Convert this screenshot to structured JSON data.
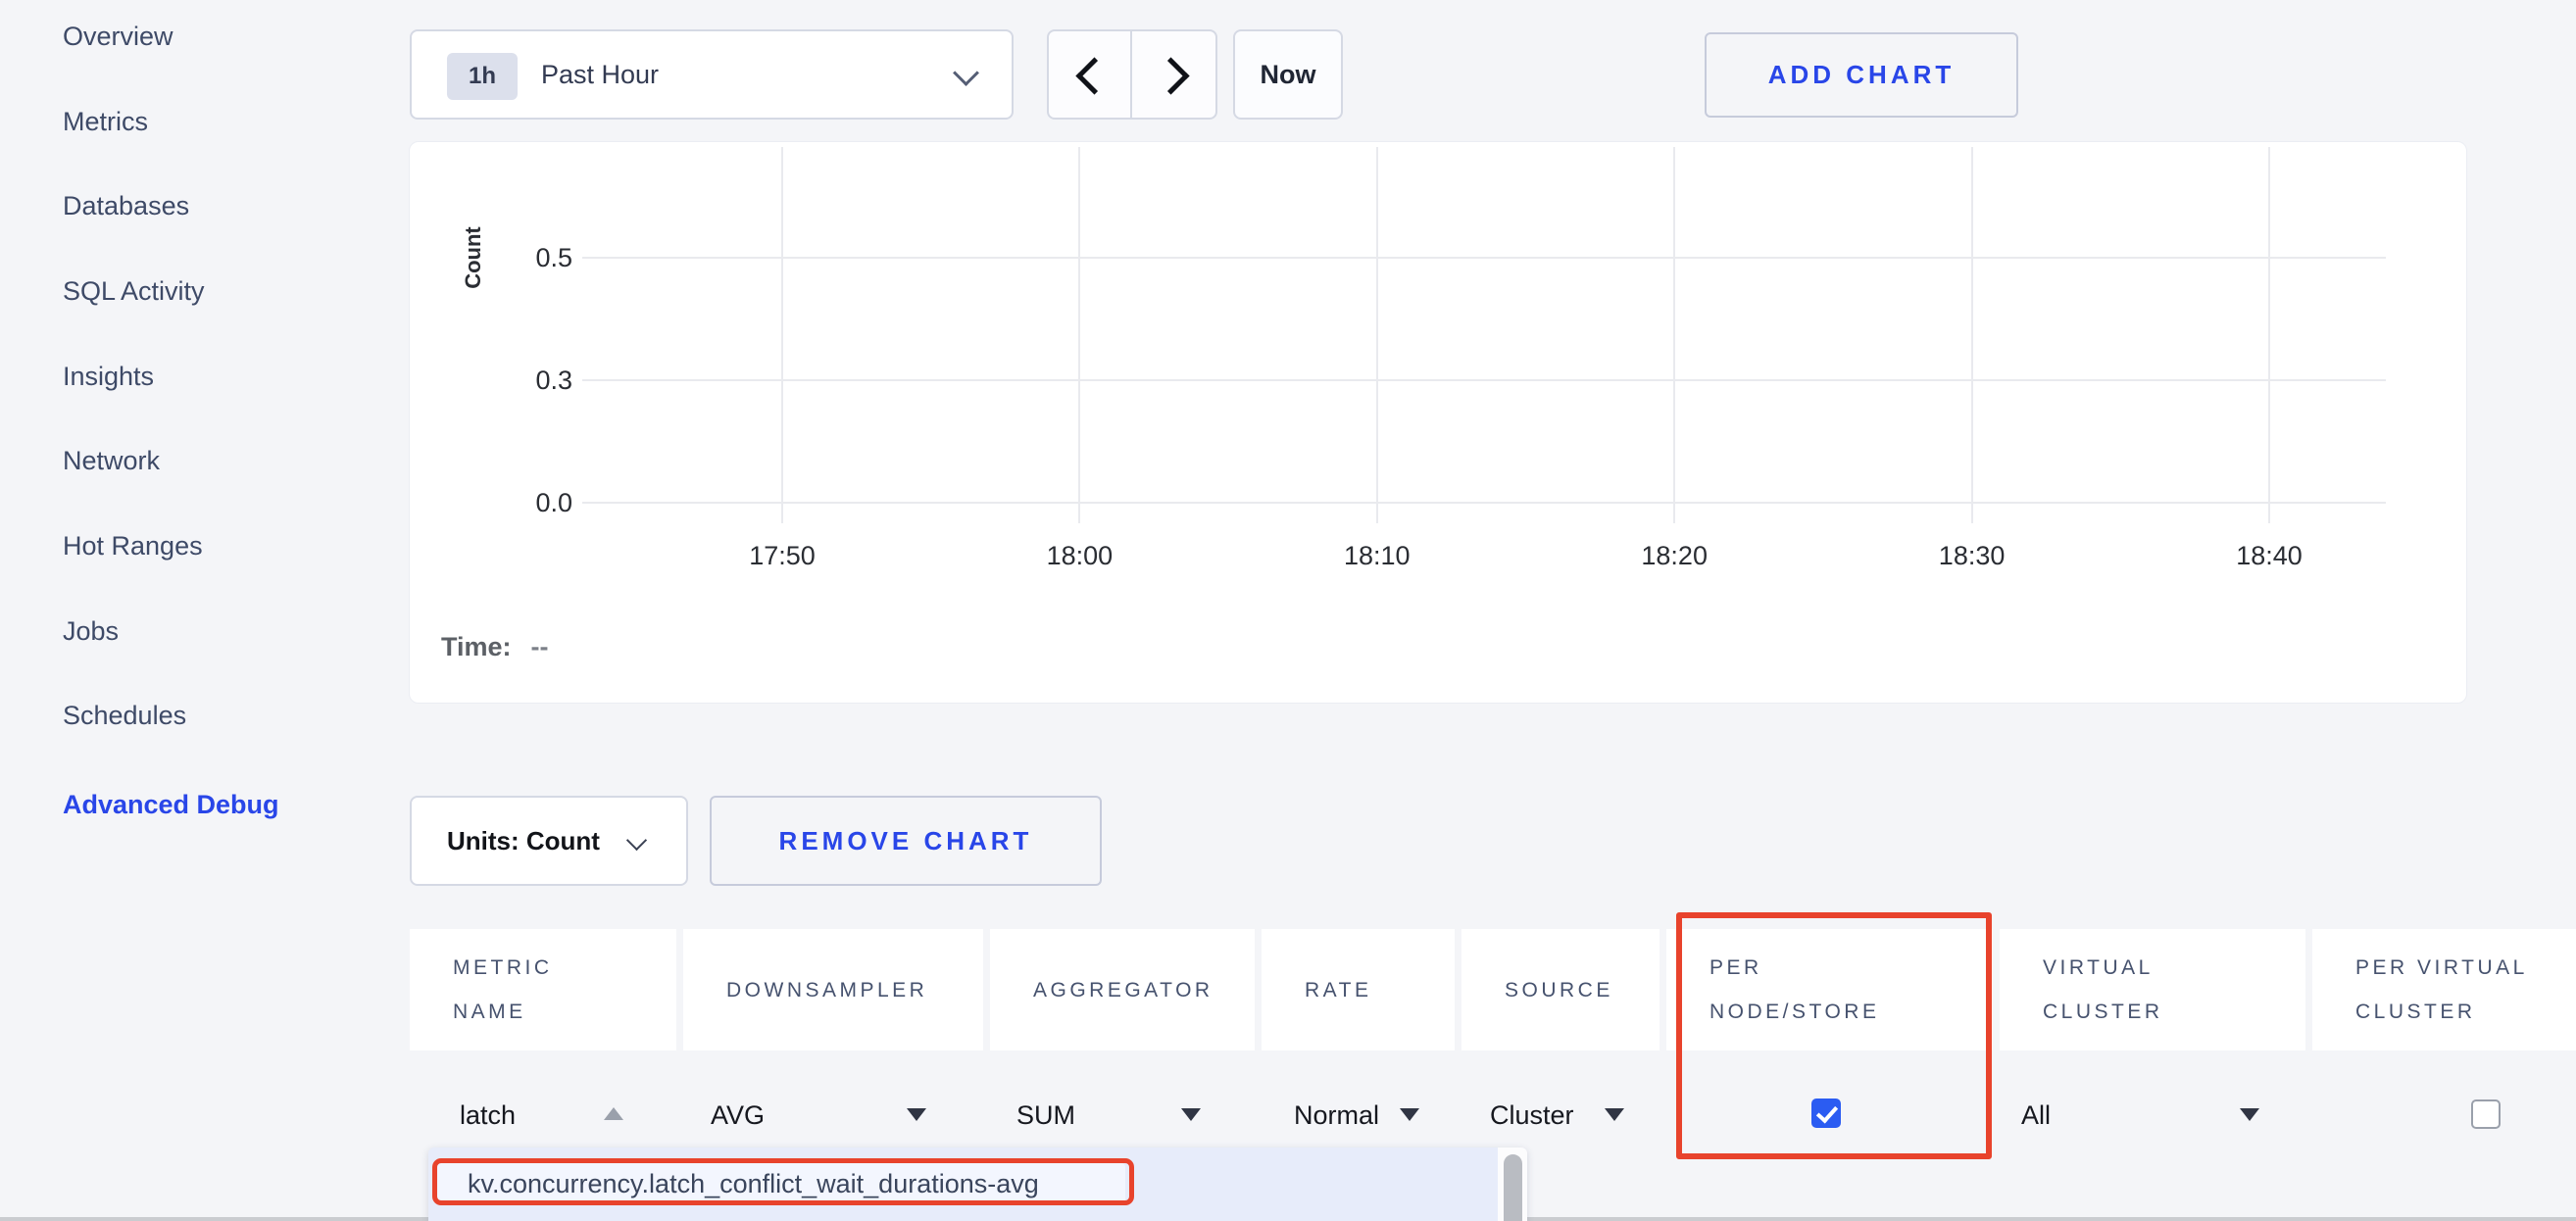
{
  "colors": {
    "page_bg": "#f4f5f8",
    "accent_blue": "#2946e8",
    "annotation_red": "#e8432c",
    "checkbox_blue": "#2b5cf2"
  },
  "icons": {
    "time_range": "chevron-down-icon",
    "prev": "chevron-left-icon",
    "next": "chevron-right-icon",
    "units": "chevron-down-icon",
    "metric_sort": "caret-up-icon",
    "selects": "caret-down-icon"
  },
  "sidebar": {
    "items": [
      {
        "label": "Overview"
      },
      {
        "label": "Metrics"
      },
      {
        "label": "Databases"
      },
      {
        "label": "SQL Activity"
      },
      {
        "label": "Insights"
      },
      {
        "label": "Network"
      },
      {
        "label": "Hot Ranges"
      },
      {
        "label": "Jobs"
      },
      {
        "label": "Schedules"
      },
      {
        "label": "Advanced Debug",
        "active": true
      }
    ]
  },
  "toolbar": {
    "time_range": {
      "badge": "1h",
      "label": "Past Hour"
    },
    "now_label": "Now",
    "add_chart_label": "ADD CHART"
  },
  "chart_data": {
    "type": "line",
    "title": "",
    "ylabel": "Count",
    "x_ticks": [
      "17:50",
      "18:00",
      "18:10",
      "18:20",
      "18:30",
      "18:40"
    ],
    "y_ticks": [
      "0.5",
      "0.3",
      "0.0"
    ],
    "ylim": [
      0,
      0.5
    ],
    "grid": true,
    "series": [],
    "tooltip_label": "Time:",
    "tooltip_value": "--"
  },
  "chart_controls": {
    "units_label": "Units: Count",
    "remove_chart_label": "REMOVE CHART"
  },
  "table": {
    "columns": [
      {
        "label": "METRIC\nNAME"
      },
      {
        "label": "DOWNSAMPLER"
      },
      {
        "label": "AGGREGATOR"
      },
      {
        "label": "RATE"
      },
      {
        "label": "SOURCE"
      },
      {
        "label": "PER\nNODE/STORE"
      },
      {
        "label": "VIRTUAL\nCLUSTER"
      },
      {
        "label": "PER VIRTUAL\nCLUSTER"
      }
    ],
    "row": {
      "metric_query": "latch",
      "downsampler": "AVG",
      "aggregator": "SUM",
      "rate": "Normal",
      "source": "Cluster",
      "per_node_store_checked": true,
      "virtual_cluster": "All",
      "per_virtual_cluster_checked": false
    }
  },
  "metric_dropdown": {
    "items": [
      {
        "label": "kv.concurrency.latch_conflict_wait_durations-avg",
        "highlighted": true
      }
    ]
  }
}
